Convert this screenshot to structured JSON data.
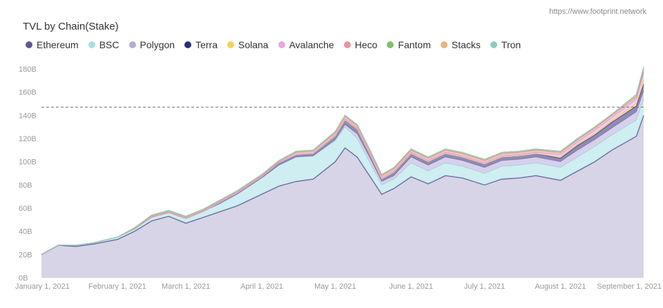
{
  "source": "https://www.footprint.network",
  "chart_data": {
    "type": "area",
    "title": "TVL by Chain(Stake)",
    "xlabel": "",
    "ylabel": "",
    "ylim": [
      0,
      180
    ],
    "y_ticks": [
      "0B",
      "20B",
      "40B",
      "60B",
      "80B",
      "100B",
      "120B",
      "140B",
      "160B",
      "180B"
    ],
    "x_ticks": [
      "January 1, 2021",
      "February 1, 2021",
      "March 1, 2021",
      "April 1, 2021",
      "May 1, 2021",
      "June 1, 2021",
      "July 1, 2021",
      "August 1, 2021",
      "September 1, 2021"
    ],
    "reference_line": 147,
    "legend_position": "top-left",
    "x": [
      "2021-01-01",
      "2021-01-08",
      "2021-01-15",
      "2021-01-22",
      "2021-02-01",
      "2021-02-08",
      "2021-02-15",
      "2021-02-22",
      "2021-03-01",
      "2021-03-08",
      "2021-03-15",
      "2021-03-22",
      "2021-04-01",
      "2021-04-08",
      "2021-04-15",
      "2021-04-22",
      "2021-05-01",
      "2021-05-05",
      "2021-05-10",
      "2021-05-15",
      "2021-05-20",
      "2021-05-25",
      "2021-06-01",
      "2021-06-08",
      "2021-06-15",
      "2021-06-22",
      "2021-07-01",
      "2021-07-08",
      "2021-07-15",
      "2021-07-22",
      "2021-08-01",
      "2021-08-08",
      "2021-08-15",
      "2021-08-22",
      "2021-09-01",
      "2021-09-04"
    ],
    "series": [
      {
        "name": "Ethereum",
        "color": "#5b5b8f",
        "fill": "#d7d4e8",
        "values": [
          20,
          28,
          27,
          29,
          33,
          40,
          49,
          53,
          47,
          52,
          57,
          62,
          72,
          79,
          83,
          85,
          100,
          112,
          104,
          88,
          72,
          77,
          87,
          81,
          88,
          86,
          80,
          85,
          86,
          88,
          84,
          92,
          100,
          110,
          122,
          140
        ]
      },
      {
        "name": "BSC",
        "color": "#a8e0e6",
        "values": [
          0,
          0,
          1,
          1,
          2,
          2,
          3,
          3,
          4,
          5,
          7,
          10,
          14,
          18,
          21,
          20,
          18,
          18,
          16,
          12,
          8,
          8,
          12,
          11,
          11,
          10,
          10,
          11,
          11,
          11,
          11,
          12,
          13,
          13,
          14,
          14
        ]
      },
      {
        "name": "Polygon",
        "color": "#b8a9d9",
        "values": [
          0,
          0,
          0,
          0,
          0,
          0,
          0,
          0,
          0,
          0,
          0,
          0,
          0,
          0,
          0,
          0,
          1,
          2,
          4,
          4,
          3,
          3,
          5,
          5,
          5,
          5,
          5,
          5,
          5,
          5,
          5,
          6,
          6,
          6,
          7,
          7
        ]
      },
      {
        "name": "Terra",
        "color": "#2d2d7a",
        "values": [
          0,
          0,
          0,
          0,
          0,
          0,
          0,
          0,
          0,
          0,
          1,
          1,
          1,
          2,
          2,
          2,
          3,
          4,
          4,
          3,
          2,
          3,
          3,
          3,
          3,
          3,
          3,
          3,
          3,
          3,
          3,
          4,
          4,
          5,
          5,
          6
        ]
      },
      {
        "name": "Solana",
        "color": "#f5d25c",
        "values": [
          0,
          0,
          0,
          0,
          0,
          0,
          0,
          0,
          0,
          0,
          0,
          0,
          0,
          0,
          0,
          0,
          0,
          0,
          0,
          0,
          0,
          0,
          0,
          0,
          0,
          0,
          0,
          0,
          0,
          0,
          1,
          1,
          1,
          1,
          2,
          3
        ]
      },
      {
        "name": "Avalanche",
        "color": "#e6a6e0",
        "values": [
          0,
          0,
          0,
          0,
          0,
          0,
          0,
          0,
          0,
          0,
          0,
          0,
          0,
          0,
          0,
          0,
          1,
          1,
          1,
          1,
          1,
          1,
          1,
          1,
          1,
          1,
          1,
          1,
          1,
          1,
          2,
          2,
          3,
          3,
          4,
          6
        ]
      },
      {
        "name": "Heco",
        "color": "#e8959a",
        "values": [
          0,
          0,
          0,
          0,
          0,
          0,
          1,
          1,
          1,
          1,
          1,
          1,
          1,
          1,
          2,
          2,
          2,
          2,
          2,
          2,
          2,
          2,
          2,
          2,
          2,
          2,
          2,
          2,
          2,
          2,
          2,
          2,
          2,
          2,
          2,
          2
        ]
      },
      {
        "name": "Fantom",
        "color": "#7bc26a",
        "values": [
          0,
          0,
          0,
          0,
          0,
          1,
          1,
          1,
          1,
          1,
          1,
          1,
          1,
          1,
          1,
          1,
          1,
          1,
          1,
          1,
          1,
          1,
          1,
          1,
          1,
          1,
          1,
          1,
          1,
          1,
          1,
          1,
          1,
          1,
          2,
          2
        ]
      },
      {
        "name": "Stacks",
        "color": "#eab37e",
        "values": [
          0,
          0,
          0,
          0,
          0,
          0,
          0,
          0,
          0,
          0,
          0,
          0,
          0,
          0,
          0,
          0,
          0,
          0,
          0,
          0,
          0,
          0,
          0,
          0,
          0,
          0,
          0,
          0,
          0,
          0,
          0,
          0,
          0,
          0,
          0,
          1
        ]
      },
      {
        "name": "Tron",
        "color": "#93c9c2",
        "values": [
          0,
          0,
          0,
          0,
          0,
          0,
          0,
          0,
          0,
          0,
          0,
          0,
          0,
          0,
          0,
          0,
          0,
          0,
          0,
          0,
          0,
          0,
          0,
          0,
          0,
          0,
          0,
          0,
          0,
          0,
          0,
          0,
          0,
          0,
          0,
          1
        ]
      }
    ]
  }
}
